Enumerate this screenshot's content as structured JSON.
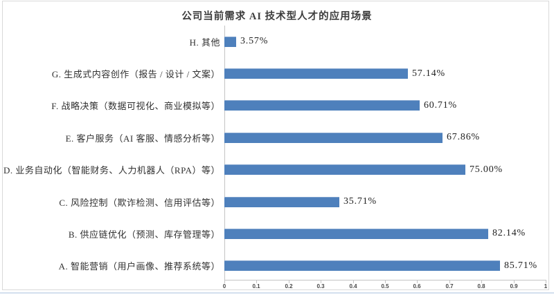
{
  "colors": {
    "frame_border": "#d9d9d9",
    "bottom_rule": "#d3dfee",
    "background": "#ffffff"
  },
  "chart_data": {
    "type": "bar",
    "orientation": "horizontal",
    "title": "公司当前需求 AI 技术型人才的应用场景",
    "categories": [
      "H.  其他",
      "G.  生成式内容创作（报告 / 设计 / 文案）",
      "F.  战略决策（数据可视化、商业模拟等）",
      "E.  客户服务（AI 客服、情感分析等）",
      "D.  业务自动化（智能财务、人力机器人（RPA）等）",
      "C.  风险控制（欺诈检测、信用评估等）",
      "B.  供应链优化（预测、库存管理等）",
      "A.  智能营销（用户画像、推荐系统等）"
    ],
    "values": [
      0.0357,
      0.5714,
      0.6071,
      0.6786,
      0.75,
      0.3571,
      0.8214,
      0.8571
    ],
    "value_labels": [
      "3.57%",
      "57.14%",
      "60.71%",
      "67.86%",
      "75.00%",
      "35.71%",
      "82.14%",
      "85.71%"
    ],
    "xlim": [
      0,
      1
    ],
    "x_ticks": [
      "0",
      "0.1",
      "0.2",
      "0.3",
      "0.4",
      "0.5",
      "0.6",
      "0.7",
      "0.8",
      "0.9",
      "1"
    ],
    "grid": false,
    "legend": "none",
    "bar_color": "#4e80bc",
    "bar_top_edge_color": "#7ea1cd",
    "axis_color": "#c3c3c3",
    "tick_label_color": "#474747",
    "category_label_color": "#303030",
    "value_label_color": "#1f1f1f",
    "title_color": "#3d3d3d"
  }
}
